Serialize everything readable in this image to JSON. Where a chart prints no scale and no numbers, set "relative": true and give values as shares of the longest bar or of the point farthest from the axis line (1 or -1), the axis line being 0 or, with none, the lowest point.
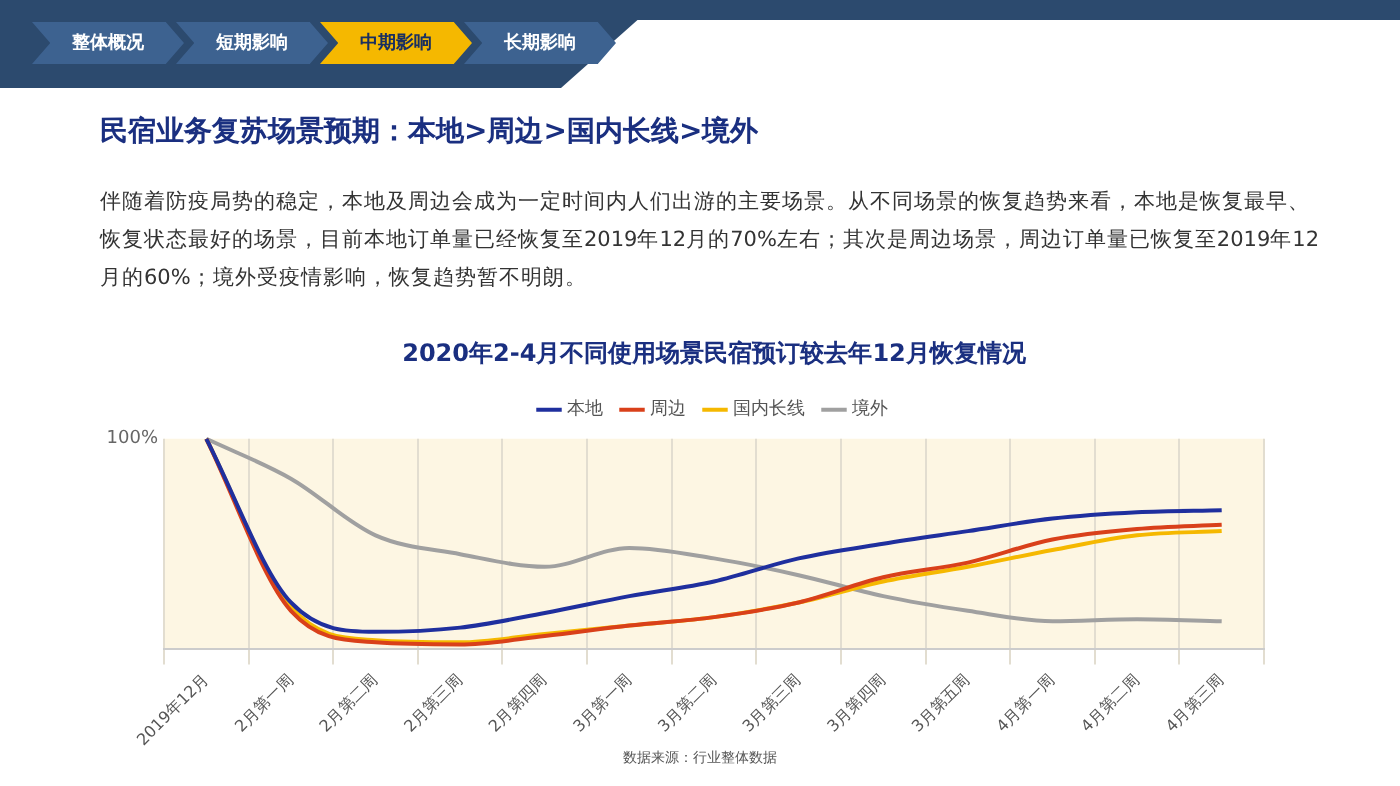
{
  "chart_data": {
    "type": "line",
    "title": "2020年2-4月不同使用场景民宿预订较去年12月恢复情况",
    "annotations": [
      "整体概况",
      "短期影响",
      "中期影响",
      "长期影响",
      "民宿业务复苏场景预期：本地>周边>国内长线>境外",
      "伴随着防疫局势的稳定，本地及周边会成为一定时间内人们出游的主要场景。从不同场景的恢复趋势来看，本地是恢复最早、恢复状态最好的场景，目前本地订单量已经恢复至2019年12月的70%左右；其次是周边场景，周边订单量已恢复至2019年12月的60%；境外受疫情影响，恢复趋势暂不明朗。",
      "100%",
      "数据来源：行业整体数据"
    ],
    "categories": [
      "2019年12月",
      "2月第一周",
      "2月第二周",
      "2月第三周",
      "2月第四周",
      "3月第一周",
      "3月第二周",
      "3月第三周",
      "3月第四周",
      "3月第五周",
      "4月第一周",
      "4月第二周",
      "4月第三周"
    ],
    "relative": true,
    "legend": "top",
    "grid": "x",
    "marker": "none",
    "series": [
      {
        "name": "本地",
        "color": "#1f2f9e",
        "values": [
          1,
          0.22,
          0.08,
          0.1,
          0.17,
          0.25,
          0.32,
          0.43,
          0.5,
          0.56,
          0.62,
          0.65,
          0.66
        ]
      },
      {
        "name": "周边",
        "color": "#d9401a",
        "values": [
          1,
          0.18,
          0.03,
          0.02,
          0.06,
          0.11,
          0.15,
          0.22,
          0.34,
          0.41,
          0.52,
          0.57,
          0.59
        ]
      },
      {
        "name": "国内长线",
        "color": "#f5b800",
        "values": [
          1,
          0.2,
          0.04,
          0.03,
          0.07,
          0.11,
          0.15,
          0.22,
          0.32,
          0.39,
          0.47,
          0.54,
          0.56
        ]
      },
      {
        "name": "境外",
        "color": "#a0a0a0",
        "values": [
          1,
          0.81,
          0.54,
          0.45,
          0.39,
          0.48,
          0.43,
          0.35,
          0.25,
          0.18,
          0.13,
          0.14,
          0.13
        ]
      }
    ]
  }
}
